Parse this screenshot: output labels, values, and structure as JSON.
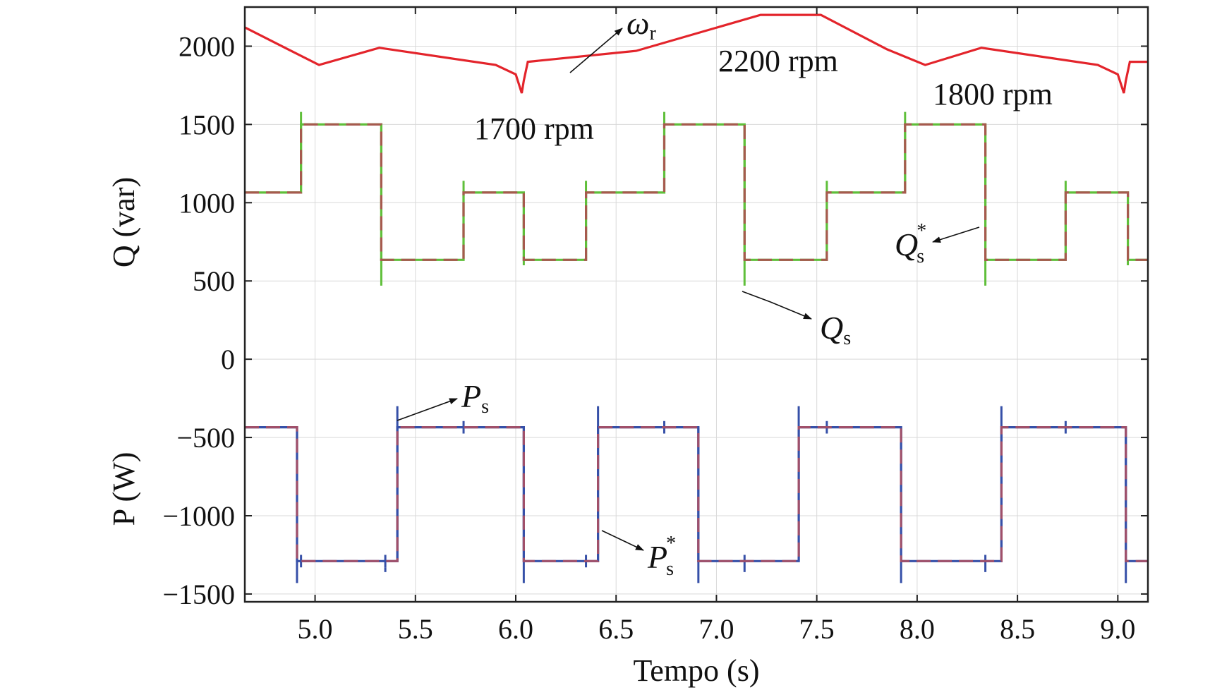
{
  "chart_data": {
    "type": "line",
    "title": "",
    "xlabel": "Tempo (s)",
    "ylabel_upper": "Q (var)",
    "ylabel_lower": "P (W)",
    "xlim": [
      4.65,
      9.15
    ],
    "ylim": [
      -1550,
      2250
    ],
    "grid": true,
    "xticks": [
      {
        "v": 5.0,
        "label": "5.0"
      },
      {
        "v": 5.5,
        "label": "5.5"
      },
      {
        "v": 6.0,
        "label": "6.0"
      },
      {
        "v": 6.5,
        "label": "6.5"
      },
      {
        "v": 7.0,
        "label": "7.0"
      },
      {
        "v": 7.5,
        "label": "7.5"
      },
      {
        "v": 8.0,
        "label": "8.0"
      },
      {
        "v": 8.5,
        "label": "8.5"
      },
      {
        "v": 9.0,
        "label": "9.0"
      }
    ],
    "yticks": [
      {
        "v": 2000,
        "label": "2000"
      },
      {
        "v": 1500,
        "label": "1500"
      },
      {
        "v": 1000,
        "label": "1000"
      },
      {
        "v": 500,
        "label": "500"
      },
      {
        "v": 0,
        "label": "0"
      },
      {
        "v": -500,
        "label": "−500"
      },
      {
        "v": -1000,
        "label": "−1000"
      },
      {
        "v": -1500,
        "label": "−1500"
      }
    ],
    "series": [
      {
        "key": "omega_r",
        "color": "#e3242b",
        "style": "solid",
        "x": [
          4.65,
          4.85,
          5.02,
          5.32,
          5.9,
          6.0,
          6.03,
          6.04,
          6.06,
          6.6,
          7.22,
          7.52,
          7.85,
          8.04,
          8.32,
          8.9,
          9.0,
          9.03,
          9.04,
          9.06,
          9.15
        ],
        "y": [
          2120,
          1990,
          1880,
          1990,
          1880,
          1820,
          1700,
          1780,
          1900,
          1970,
          2200,
          2200,
          1980,
          1880,
          1990,
          1880,
          1820,
          1700,
          1780,
          1900,
          1900
        ]
      },
      {
        "key": "Q_s_ref",
        "color": "#a65a4e",
        "style": "dashed",
        "x": [
          4.65,
          4.93,
          4.93,
          5.33,
          5.33,
          5.74,
          5.74,
          6.04,
          6.04,
          6.35,
          6.35,
          6.74,
          6.74,
          7.14,
          7.14,
          7.55,
          7.55,
          7.94,
          7.94,
          8.34,
          8.34,
          8.74,
          8.74,
          9.05,
          9.05,
          9.15
        ],
        "y": [
          1065,
          1065,
          1500,
          1500,
          635,
          635,
          1065,
          1065,
          635,
          635,
          1065,
          1065,
          1500,
          1500,
          635,
          635,
          1065,
          1065,
          1500,
          1500,
          635,
          635,
          1065,
          1065,
          635,
          635
        ]
      },
      {
        "key": "Q_s",
        "color": "#5fbf3a",
        "style": "solid",
        "x": [
          4.65,
          4.93,
          4.93,
          5.33,
          5.33,
          5.74,
          5.74,
          6.04,
          6.04,
          6.35,
          6.35,
          6.74,
          6.74,
          7.14,
          7.14,
          7.55,
          7.55,
          7.94,
          7.94,
          8.34,
          8.34,
          8.74,
          8.74,
          9.05,
          9.05,
          9.15
        ],
        "y": [
          1065,
          1065,
          1500,
          1500,
          635,
          635,
          1065,
          1065,
          635,
          635,
          1065,
          1065,
          1500,
          1500,
          635,
          635,
          1065,
          1065,
          1500,
          1500,
          635,
          635,
          1065,
          1065,
          635,
          635
        ]
      },
      {
        "key": "P_s_ref",
        "color": "#a0506a",
        "style": "dashed",
        "x": [
          4.65,
          4.91,
          4.91,
          5.41,
          5.41,
          6.04,
          6.04,
          6.41,
          6.41,
          6.91,
          6.91,
          7.41,
          7.41,
          7.92,
          7.92,
          8.42,
          8.42,
          9.04,
          9.04,
          9.15
        ],
        "y": [
          -435,
          -435,
          -1290,
          -1290,
          -435,
          -435,
          -1290,
          -1290,
          -435,
          -435,
          -1290,
          -1290,
          -435,
          -435,
          -1290,
          -1290,
          -435,
          -435,
          -1290,
          -1290
        ]
      },
      {
        "key": "P_s",
        "color": "#3650a8",
        "style": "solid",
        "x": [
          4.65,
          4.91,
          4.91,
          5.41,
          5.41,
          6.04,
          6.04,
          6.41,
          6.41,
          6.91,
          6.91,
          7.41,
          7.41,
          7.92,
          7.92,
          8.42,
          8.42,
          9.04,
          9.04,
          9.15
        ],
        "y": [
          -435,
          -435,
          -1290,
          -1290,
          -435,
          -435,
          -1290,
          -1290,
          -435,
          -435,
          -1290,
          -1290,
          -435,
          -435,
          -1290,
          -1290,
          -435,
          -435,
          -1290,
          -1290
        ]
      }
    ],
    "spikes": [
      {
        "series": "Q_s",
        "x": 4.93,
        "y1": 1065,
        "y2": 1580
      },
      {
        "series": "Q_s",
        "x": 5.33,
        "y1": 1500,
        "y2": 470
      },
      {
        "series": "Q_s",
        "x": 5.74,
        "y1": 635,
        "y2": 1140
      },
      {
        "series": "Q_s",
        "x": 6.04,
        "y1": 1065,
        "y2": 600
      },
      {
        "series": "Q_s",
        "x": 6.35,
        "y1": 635,
        "y2": 1140
      },
      {
        "series": "Q_s",
        "x": 6.74,
        "y1": 1065,
        "y2": 1580
      },
      {
        "series": "Q_s",
        "x": 7.14,
        "y1": 1500,
        "y2": 470
      },
      {
        "series": "Q_s",
        "x": 7.55,
        "y1": 635,
        "y2": 1140
      },
      {
        "series": "Q_s",
        "x": 7.94,
        "y1": 1065,
        "y2": 1580
      },
      {
        "series": "Q_s",
        "x": 8.34,
        "y1": 1500,
        "y2": 470
      },
      {
        "series": "Q_s",
        "x": 8.74,
        "y1": 635,
        "y2": 1140
      },
      {
        "series": "Q_s",
        "x": 9.05,
        "y1": 1065,
        "y2": 600
      },
      {
        "series": "P_s",
        "x": 4.91,
        "y1": -435,
        "y2": -1430
      },
      {
        "series": "P_s",
        "x": 5.41,
        "y1": -1290,
        "y2": -300
      },
      {
        "series": "P_s",
        "x": 6.04,
        "y1": -435,
        "y2": -1430
      },
      {
        "series": "P_s",
        "x": 6.41,
        "y1": -1290,
        "y2": -300
      },
      {
        "series": "P_s",
        "x": 6.91,
        "y1": -435,
        "y2": -1430
      },
      {
        "series": "P_s",
        "x": 7.41,
        "y1": -1290,
        "y2": -300
      },
      {
        "series": "P_s",
        "x": 7.92,
        "y1": -435,
        "y2": -1430
      },
      {
        "series": "P_s",
        "x": 8.42,
        "y1": -1290,
        "y2": -300
      },
      {
        "series": "P_s",
        "x": 9.04,
        "y1": -435,
        "y2": -1430
      },
      {
        "series": "P_s",
        "x": 4.93,
        "y1": -1250,
        "y2": -1330
      },
      {
        "series": "P_s",
        "x": 5.35,
        "y1": -1250,
        "y2": -1330
      },
      {
        "series": "P_s",
        "x": 5.35,
        "y1": -1330,
        "y2": -1360
      },
      {
        "series": "P_s",
        "x": 5.74,
        "y1": -395,
        "y2": -475
      },
      {
        "series": "P_s",
        "x": 6.35,
        "y1": -1250,
        "y2": -1330
      },
      {
        "series": "P_s",
        "x": 6.74,
        "y1": -395,
        "y2": -475
      },
      {
        "series": "P_s",
        "x": 7.14,
        "y1": -1250,
        "y2": -1360
      },
      {
        "series": "P_s",
        "x": 7.55,
        "y1": -395,
        "y2": -475
      },
      {
        "series": "P_s",
        "x": 8.34,
        "y1": -1250,
        "y2": -1360
      },
      {
        "series": "P_s",
        "x": 8.74,
        "y1": -395,
        "y2": -475
      }
    ],
    "annotations": {
      "omega_label": {
        "main": "ω",
        "sub": "r"
      },
      "rpm_1700": "1700 rpm",
      "rpm_2200": "2200 rpm",
      "rpm_1800": "1800 rpm",
      "qs_label": {
        "main": "Q",
        "sub": "s"
      },
      "qs_ref_label": {
        "main": "Q",
        "sub": "s",
        "sup": "*"
      },
      "ps_label": {
        "main": "P",
        "sub": "s"
      },
      "ps_ref_label": {
        "main": "P",
        "sub": "s",
        "sup": "*"
      }
    }
  }
}
